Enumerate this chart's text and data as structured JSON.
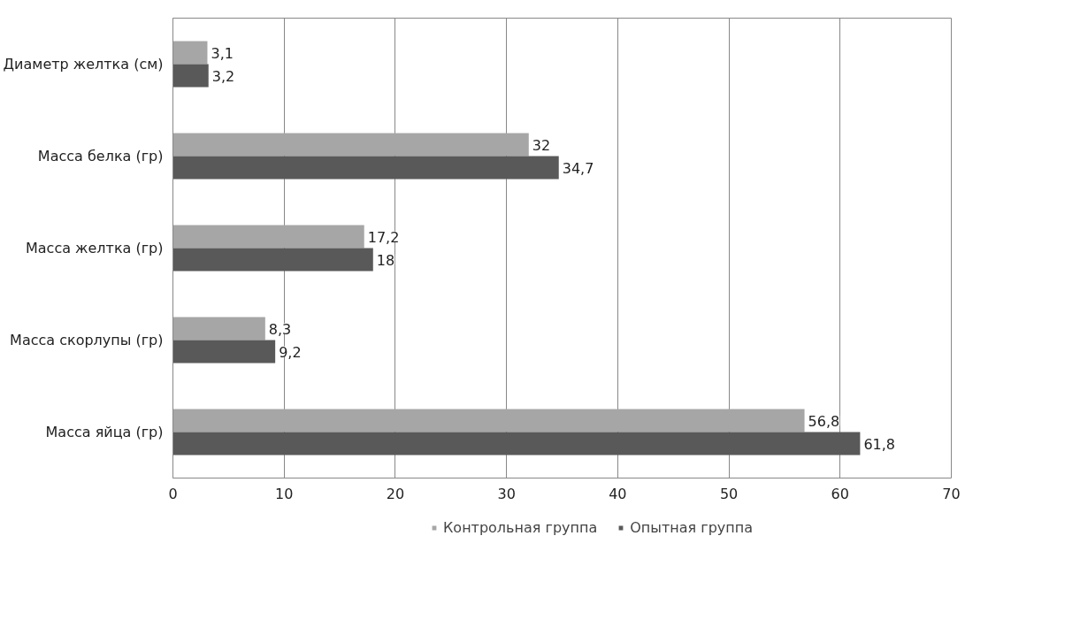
{
  "chart_data": {
    "type": "bar",
    "orientation": "horizontal",
    "categories": [
      "Диаметр желтка (см)",
      "Масса белка (гр)",
      "Масса желтка (гр)",
      "Масса скорлупы (гр)",
      "Масса яйца (гр)"
    ],
    "series": [
      {
        "name": "Контрольная группа",
        "color": "#a6a6a6",
        "values": [
          3.1,
          32,
          17.2,
          8.3,
          56.8
        ],
        "value_labels": [
          "3,1",
          "32",
          "17,2",
          "8,3",
          "56,8"
        ]
      },
      {
        "name": "Опытная группа",
        "color": "#595959",
        "values": [
          3.2,
          34.7,
          18,
          9.2,
          61.8
        ],
        "value_labels": [
          "3,2",
          "34,7",
          "18",
          "9,2",
          "61,8"
        ]
      }
    ],
    "xlim": [
      0,
      70
    ],
    "xticks": [
      0,
      10,
      20,
      30,
      40,
      50,
      60,
      70
    ],
    "grid": "x",
    "legend": "bottom"
  }
}
